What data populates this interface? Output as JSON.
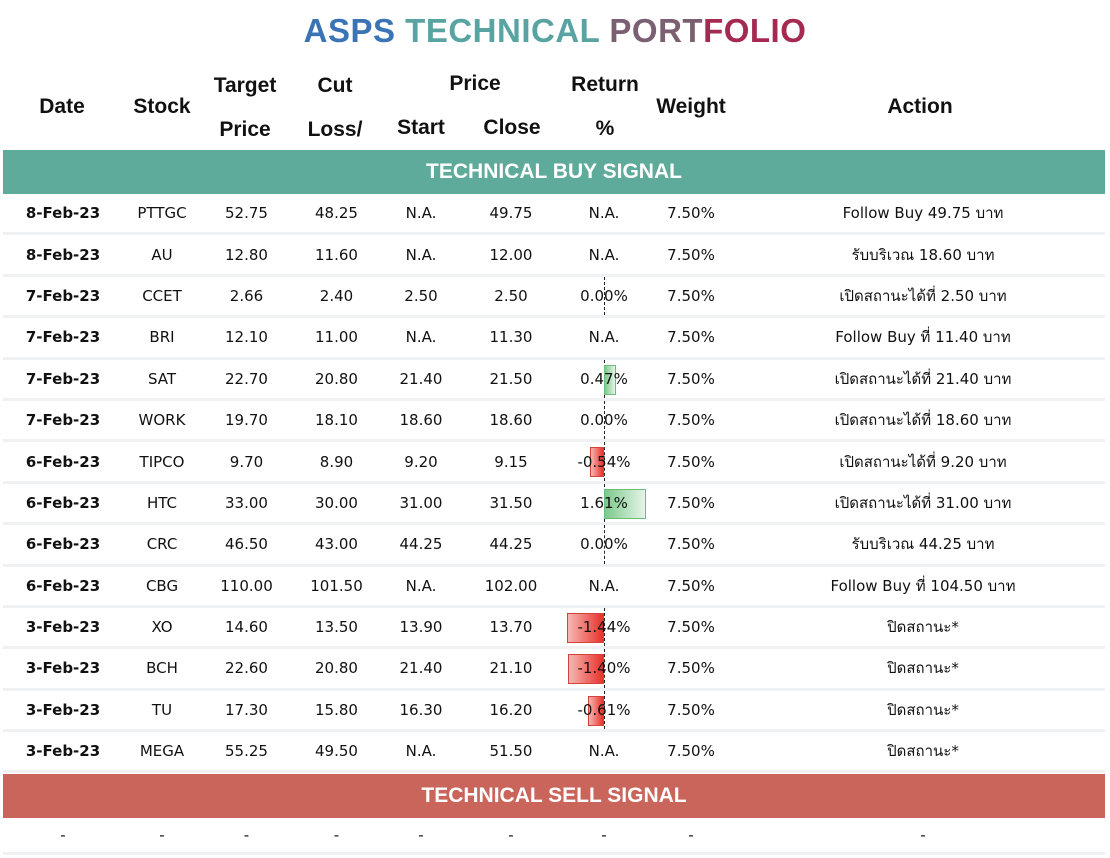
{
  "title": {
    "part1": "ASPS ",
    "part2": "TECHNICAL ",
    "part3": "PORT",
    "part4": "FOLIO"
  },
  "headers": {
    "date": "Date",
    "stock": "Stock",
    "target_1": "Target",
    "target_2": "Price",
    "cut_1": "Cut",
    "cut_2": "Loss/",
    "price": "Price",
    "start": "Start",
    "close": "Close",
    "return_1": "Return",
    "return_2": "%",
    "weight": "Weight",
    "action": "Action"
  },
  "buy_label": "TECHNICAL BUY SIGNAL",
  "sell_label": "TECHNICAL SELL SIGNAL",
  "buy_rows": [
    {
      "date": "8-Feb-23",
      "stock": "PTTGC",
      "target": "52.75",
      "cut": "48.25",
      "start": "N.A.",
      "close": "49.75",
      "ret": "N.A.",
      "ret_value": null,
      "weight": "7.50%",
      "action": "Follow Buy 49.75 บาท"
    },
    {
      "date": "8-Feb-23",
      "stock": "AU",
      "target": "12.80",
      "cut": "11.60",
      "start": "N.A.",
      "close": "12.00",
      "ret": "N.A.",
      "ret_value": null,
      "weight": "7.50%",
      "action": "รับบริเวณ 18.60 บาท"
    },
    {
      "date": "7-Feb-23",
      "stock": "CCET",
      "target": "2.66",
      "cut": "2.40",
      "start": "2.50",
      "close": "2.50",
      "ret": "0.00%",
      "ret_value": 0.0,
      "weight": "7.50%",
      "action": "เปิดสถานะได้ที่ 2.50 บาท"
    },
    {
      "date": "7-Feb-23",
      "stock": "BRI",
      "target": "12.10",
      "cut": "11.00",
      "start": "N.A.",
      "close": "11.30",
      "ret": "N.A.",
      "ret_value": null,
      "weight": "7.50%",
      "action": "Follow Buy ที่ 11.40 บาท"
    },
    {
      "date": "7-Feb-23",
      "stock": "SAT",
      "target": "22.70",
      "cut": "20.80",
      "start": "21.40",
      "close": "21.50",
      "ret": "0.47%",
      "ret_value": 0.47,
      "weight": "7.50%",
      "action": "เปิดสถานะได้ที่ 21.40 บาท"
    },
    {
      "date": "7-Feb-23",
      "stock": "WORK",
      "target": "19.70",
      "cut": "18.10",
      "start": "18.60",
      "close": "18.60",
      "ret": "0.00%",
      "ret_value": 0.0,
      "weight": "7.50%",
      "action": "เปิดสถานะได้ที่ 18.60 บาท"
    },
    {
      "date": "6-Feb-23",
      "stock": "TIPCO",
      "target": "9.70",
      "cut": "8.90",
      "start": "9.20",
      "close": "9.15",
      "ret": "-0.54%",
      "ret_value": -0.54,
      "weight": "7.50%",
      "action": "เปิดสถานะได้ที่ 9.20 บาท"
    },
    {
      "date": "6-Feb-23",
      "stock": "HTC",
      "target": "33.00",
      "cut": "30.00",
      "start": "31.00",
      "close": "31.50",
      "ret": "1.61%",
      "ret_value": 1.61,
      "weight": "7.50%",
      "action": "เปิดสถานะได้ที่ 31.00 บาท"
    },
    {
      "date": "6-Feb-23",
      "stock": "CRC",
      "target": "46.50",
      "cut": "43.00",
      "start": "44.25",
      "close": "44.25",
      "ret": "0.00%",
      "ret_value": 0.0,
      "weight": "7.50%",
      "action": "รับบริเวณ 44.25 บาท"
    },
    {
      "date": "6-Feb-23",
      "stock": "CBG",
      "target": "110.00",
      "cut": "101.50",
      "start": "N.A.",
      "close": "102.00",
      "ret": "N.A.",
      "ret_value": null,
      "weight": "7.50%",
      "action": "Follow Buy ที่ 104.50 บาท"
    },
    {
      "date": "3-Feb-23",
      "stock": "XO",
      "target": "14.60",
      "cut": "13.50",
      "start": "13.90",
      "close": "13.70",
      "ret": "-1.44%",
      "ret_value": -1.44,
      "weight": "7.50%",
      "action": "ปิดสถานะ*"
    },
    {
      "date": "3-Feb-23",
      "stock": "BCH",
      "target": "22.60",
      "cut": "20.80",
      "start": "21.40",
      "close": "21.10",
      "ret": "-1.40%",
      "ret_value": -1.4,
      "weight": "7.50%",
      "action": "ปิดสถานะ*"
    },
    {
      "date": "3-Feb-23",
      "stock": "TU",
      "target": "17.30",
      "cut": "15.80",
      "start": "16.30",
      "close": "16.20",
      "ret": "-0.61%",
      "ret_value": -0.61,
      "weight": "7.50%",
      "action": "ปิดสถานะ*"
    },
    {
      "date": "3-Feb-23",
      "stock": "MEGA",
      "target": "55.25",
      "cut": "49.50",
      "start": "N.A.",
      "close": "51.50",
      "ret": "N.A.",
      "ret_value": null,
      "weight": "7.50%",
      "action": "ปิดสถานะ*"
    }
  ],
  "sell_row": {
    "date": "-",
    "stock": "-",
    "target": "-",
    "cut": "-",
    "start": "-",
    "close": "-",
    "ret": "-",
    "weight": "-",
    "action": "-"
  },
  "colors": {
    "buy_band": "#5fab9b",
    "sell_band": "#c9655b",
    "positive_bar": "#7dc98c",
    "negative_bar": "#e8322c"
  }
}
